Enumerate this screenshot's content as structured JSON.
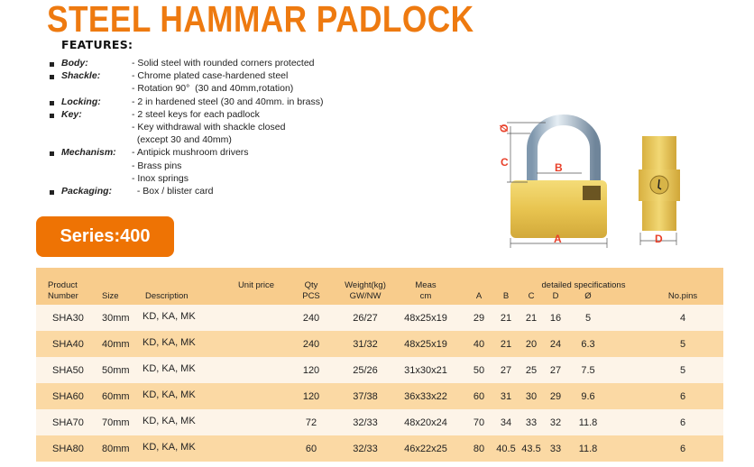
{
  "title": "STEEL HAMMAR PADLOCK",
  "features_heading": "FEATURES:",
  "features": [
    {
      "label": "Body:",
      "lines": [
        "- Solid steel with rounded corners protected"
      ]
    },
    {
      "label": "Shackle:",
      "lines": [
        "- Chrome plated case-hardened steel",
        "- Rotation 90°  (30 and 40mm,rotation)"
      ]
    },
    {
      "label": "Locking:",
      "lines": [
        "- 2 in hardened steel (30 and 40mm. in brass)"
      ]
    },
    {
      "label": "Key:",
      "lines": [
        "- 2 steel keys for each padlock",
        "- Key withdrawal with shackle closed",
        "  (except 30 and 40mm)"
      ]
    },
    {
      "label": "Mechanism:",
      "lines": [
        "- Antipick mushroom drivers",
        "- Brass pins",
        "- Inox springs"
      ]
    },
    {
      "label": "Packaging:",
      "lines": [
        "  - Box / blister card"
      ]
    }
  ],
  "series_label": "Series:400",
  "diagram_labels": {
    "phi": "Ø",
    "a": "A",
    "b": "B",
    "c": "C",
    "d": "D"
  },
  "colors": {
    "accent": "#ee7304",
    "header_bg": "#f8cc8c",
    "row_alt": "#fbd9a4",
    "row_light": "#fdf4e8",
    "dimension": "#e8402a"
  },
  "table": {
    "headers": {
      "product": "Product",
      "number": "Number",
      "size": "Size",
      "description": "Description",
      "unit_price": "Unit price",
      "qty": "Qty",
      "pcs": "PCS",
      "weight": "Weight(kg)",
      "gwnw": "GW/NW",
      "meas": "Meas",
      "cm": "cm",
      "detailed": "detailed specifications",
      "a": "A",
      "b": "B",
      "c": "C",
      "d": "D",
      "phi": "Ø",
      "pins": "No.pins"
    },
    "rows": [
      {
        "product": "SHA30",
        "size": "30mm",
        "description": "KD, KA, MK",
        "qty": "240",
        "weight": "26/27",
        "meas": "48x25x19",
        "a": "29",
        "b": "21",
        "c": "21",
        "d": "16",
        "phi": "5",
        "pins": "4"
      },
      {
        "product": "SHA40",
        "size": "40mm",
        "description": "KD, KA, MK",
        "qty": "240",
        "weight": "31/32",
        "meas": "48x25x19",
        "a": "40",
        "b": "21",
        "c": "20",
        "d": "24",
        "phi": "6.3",
        "pins": "5"
      },
      {
        "product": "SHA50",
        "size": "50mm",
        "description": "KD, KA, MK",
        "qty": "120",
        "weight": "25/26",
        "meas": "31x30x21",
        "a": "50",
        "b": "27",
        "c": "25",
        "d": "27",
        "phi": "7.5",
        "pins": "5"
      },
      {
        "product": "SHA60",
        "size": "60mm",
        "description": "KD, KA, MK",
        "qty": "120",
        "weight": "37/38",
        "meas": "36x33x22",
        "a": "60",
        "b": "31",
        "c": "30",
        "d": "29",
        "phi": "9.6",
        "pins": "6"
      },
      {
        "product": "SHA70",
        "size": "70mm",
        "description": "KD, KA, MK",
        "qty": "72",
        "weight": "32/33",
        "meas": "48x20x24",
        "a": "70",
        "b": "34",
        "c": "33",
        "d": "32",
        "phi": "11.8",
        "pins": "6"
      },
      {
        "product": "SHA80",
        "size": "80mm",
        "description": "KD, KA, MK",
        "qty": "60",
        "weight": "32/33",
        "meas": "46x22x25",
        "a": "80",
        "b": "40.5",
        "c": "43.5",
        "d": "33",
        "phi": "11.8",
        "pins": "6"
      }
    ]
  }
}
